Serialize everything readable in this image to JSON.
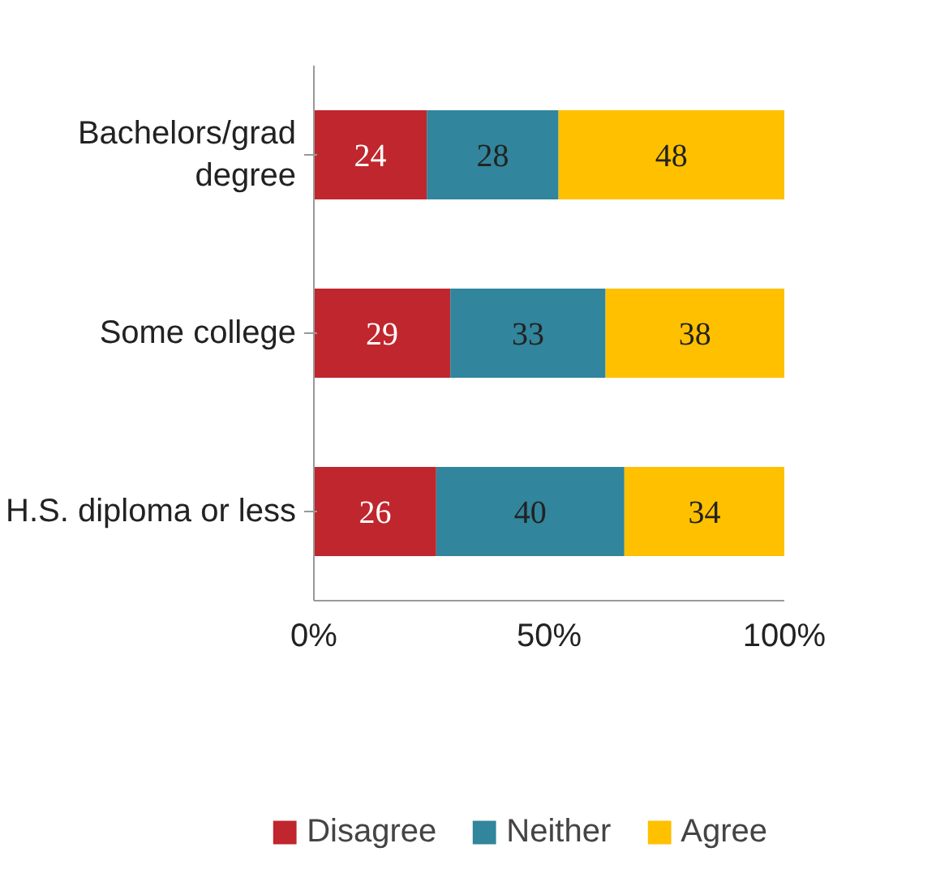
{
  "chart_data": {
    "type": "bar",
    "orientation": "horizontal",
    "stacked": true,
    "categories": [
      "Bachelors/grad\ndegree",
      "Some college",
      "H.S. diploma or less"
    ],
    "series": [
      {
        "name": "Disagree",
        "color": "#c0262d",
        "values": [
          24,
          29,
          26
        ]
      },
      {
        "name": "Neither",
        "color": "#31859c",
        "values": [
          28,
          33,
          40
        ]
      },
      {
        "name": "Agree",
        "color": "#ffc000",
        "values": [
          48,
          38,
          34
        ]
      }
    ],
    "xlim": [
      0,
      100
    ],
    "xticks": [
      {
        "value": 0,
        "label": "0%"
      },
      {
        "value": 50,
        "label": "50%"
      },
      {
        "value": 100,
        "label": "100%"
      }
    ],
    "data_labels": true,
    "grid": false,
    "legend": "bottom"
  }
}
